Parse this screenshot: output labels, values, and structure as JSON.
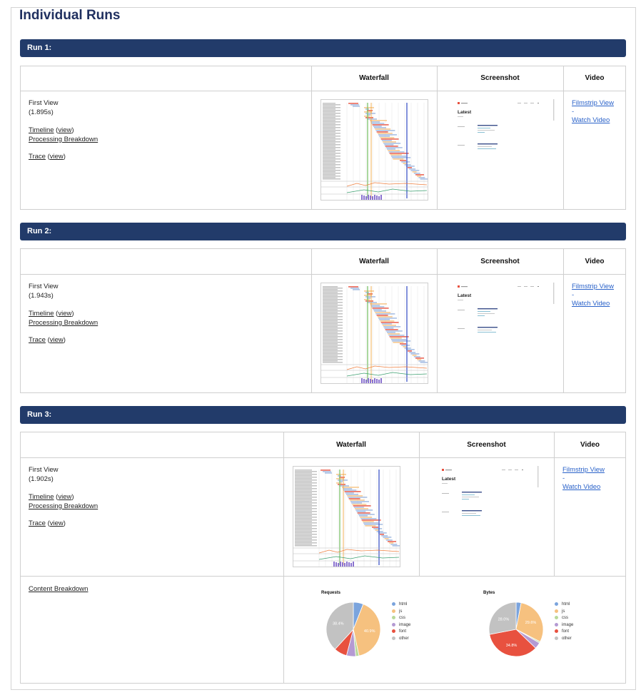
{
  "page": {
    "title": "Individual Runs"
  },
  "columns": {
    "waterfall": "Waterfall",
    "screenshot": "Screenshot",
    "video": "Video"
  },
  "screenshot_page": {
    "heading": "Latest"
  },
  "runs": [
    {
      "label": "Run 1:",
      "view": "First View",
      "time": "(1.895s)",
      "timeline": "Timeline",
      "view_link": "view",
      "processing": "Processing Breakdown",
      "trace": "Trace",
      "filmstrip": "Filmstrip View",
      "dash": "-",
      "watch": "Watch Video"
    },
    {
      "label": "Run 2:",
      "view": "First View",
      "time": "(1.943s)",
      "timeline": "Timeline",
      "view_link": "view",
      "processing": "Processing Breakdown",
      "trace": "Trace",
      "filmstrip": "Filmstrip View",
      "dash": "-",
      "watch": "Watch Video"
    },
    {
      "label": "Run 3:",
      "view": "First View",
      "time": "(1.902s)",
      "timeline": "Timeline",
      "view_link": "view",
      "processing": "Processing Breakdown",
      "trace": "Trace",
      "filmstrip": "Filmstrip View",
      "dash": "-",
      "watch": "Watch Video"
    }
  ],
  "content_breakdown": {
    "label": "Content Breakdown"
  },
  "chart_data": [
    {
      "type": "pie",
      "title": "Requests",
      "categories": [
        "html",
        "js",
        "css",
        "image",
        "font",
        "other"
      ],
      "values": [
        6.0,
        40.9,
        2.0,
        5.5,
        7.8,
        38.4
      ],
      "colors": [
        "#7ba4dd",
        "#f6c17f",
        "#b8d99a",
        "#b49ad3",
        "#e8513f",
        "#c2c2c2"
      ],
      "labels": [
        "",
        "40.9%",
        "",
        "",
        "",
        "38.4%"
      ]
    },
    {
      "type": "pie",
      "title": "Bytes",
      "categories": [
        "html",
        "js",
        "css",
        "image",
        "font",
        "other"
      ],
      "values": [
        3.0,
        29.6,
        0.8,
        3.8,
        34.8,
        28.0
      ],
      "colors": [
        "#7ba4dd",
        "#f6c17f",
        "#b8d99a",
        "#b49ad3",
        "#e8513f",
        "#c2c2c2"
      ],
      "labels": [
        "",
        "29.6%",
        "",
        "",
        "34.8%",
        "28.0%"
      ]
    }
  ]
}
